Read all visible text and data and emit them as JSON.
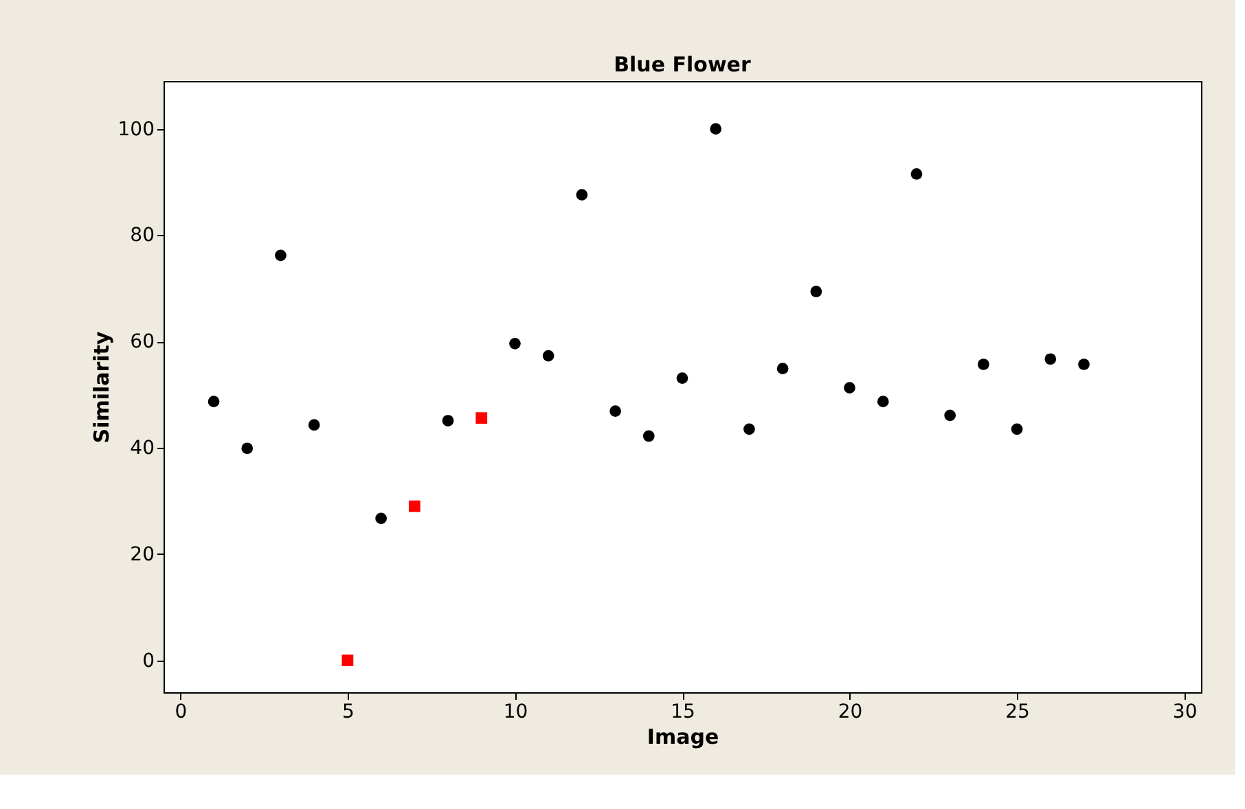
{
  "chart_data": {
    "type": "scatter",
    "title": "Blue Flower",
    "xlabel": "Image",
    "ylabel": "Similarity",
    "series": [
      {
        "color": "#000000",
        "marker": "circle",
        "x": [
          1,
          2,
          3,
          4,
          6,
          8,
          10,
          11,
          12,
          13,
          14,
          15,
          16,
          17,
          18,
          19,
          20,
          21,
          22,
          23,
          24,
          25,
          26,
          27
        ],
        "values": [
          48.7,
          39.9,
          76.2,
          44.3,
          26.7,
          45.1,
          59.6,
          57.3,
          87.6,
          46.9,
          42.2,
          53.1,
          100,
          43.5,
          54.9,
          69.4,
          51.3,
          48.7,
          91.5,
          46.1,
          55.7,
          43.5,
          56.7,
          55.7
        ]
      },
      {
        "color": "#ff0000",
        "marker": "square",
        "x": [
          5,
          7,
          9
        ],
        "values": [
          0,
          29.0,
          45.6
        ]
      }
    ],
    "xlim": [
      -0.5,
      30.5
    ],
    "ylim": [
      -6,
      109
    ],
    "xticks": [
      0,
      5,
      10,
      15,
      20,
      25,
      30
    ],
    "yticks": [
      0,
      20,
      40,
      60,
      80,
      100
    ],
    "grid": false
  }
}
